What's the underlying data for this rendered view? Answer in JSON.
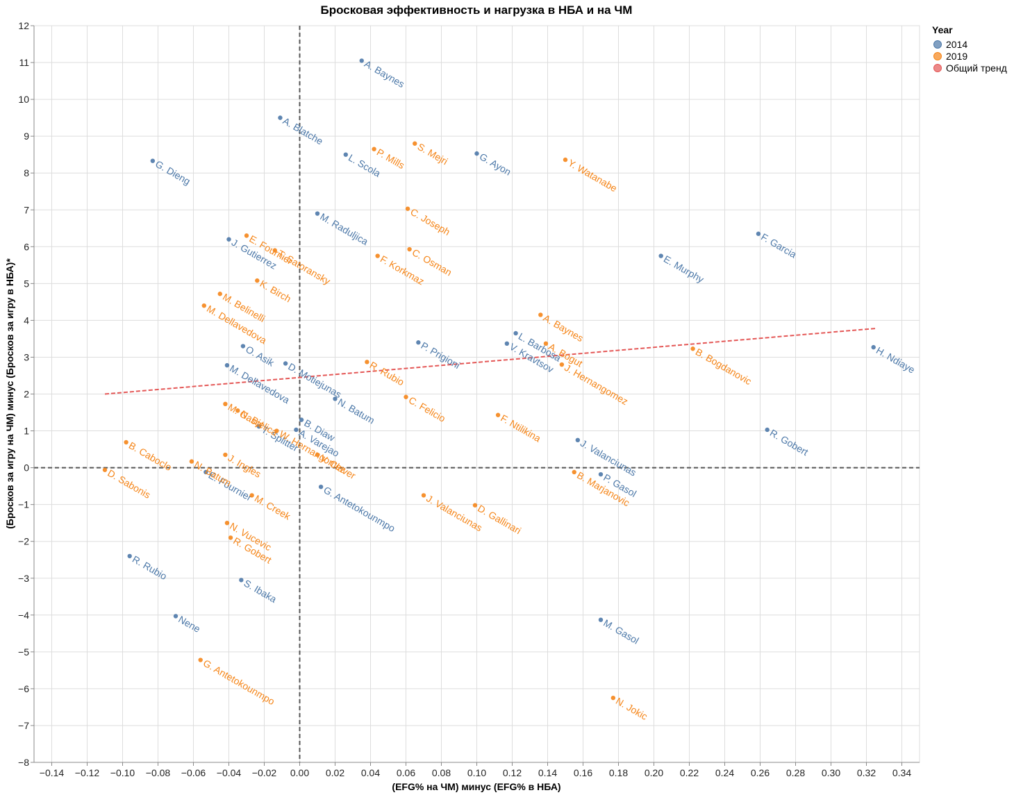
{
  "chart_data": {
    "type": "scatter",
    "title": "Бросковая эффективность и нагрузка в НБА и на ЧМ",
    "xlabel": "(EFG% на ЧМ) минус (EFG% в НБА)",
    "ylabel": "(Бросков за игру на ЧМ) минус (Бросков за игру в НБА)*",
    "xlim": [
      -0.15,
      0.35
    ],
    "ylim": [
      -8,
      12
    ],
    "x_ticks": [
      -0.14,
      -0.12,
      -0.1,
      -0.08,
      -0.06,
      -0.04,
      -0.02,
      0.0,
      0.02,
      0.04,
      0.06,
      0.08,
      0.1,
      0.12,
      0.14,
      0.16,
      0.18,
      0.2,
      0.22,
      0.24,
      0.26,
      0.28,
      0.3,
      0.32,
      0.34
    ],
    "x_tick_labels": [
      "−0.14",
      "−0.12",
      "−0.10",
      "−0.08",
      "−0.06",
      "−0.04",
      "−0.02",
      "0.00",
      "0.02",
      "0.04",
      "0.06",
      "0.08",
      "0.10",
      "0.12",
      "0.14",
      "0.16",
      "0.18",
      "0.20",
      "0.22",
      "0.24",
      "0.26",
      "0.28",
      "0.30",
      "0.32",
      "0.34"
    ],
    "y_ticks": [
      -8,
      -7,
      -6,
      -5,
      -4,
      -3,
      -2,
      -1,
      0,
      1,
      2,
      3,
      4,
      5,
      6,
      7,
      8,
      9,
      10,
      11,
      12
    ],
    "y_tick_labels": [
      "−8",
      "−7",
      "−6",
      "−5",
      "−4",
      "−3",
      "−2",
      "−1",
      "0",
      "1",
      "2",
      "3",
      "4",
      "5",
      "6",
      "7",
      "8",
      "9",
      "10",
      "11",
      "12"
    ],
    "grid": true,
    "legend": {
      "title": "Year",
      "position": "top-right",
      "items": [
        {
          "label": "2014",
          "color": "#4c78a8"
        },
        {
          "label": "2019",
          "color": "#f58518"
        },
        {
          "label": "Общий тренд",
          "color": "#e45756"
        }
      ]
    },
    "reference_lines": {
      "x": 0,
      "y": 0,
      "color": "#555555"
    },
    "trend": {
      "name": "Общий тренд",
      "x": [
        -0.11,
        0.325
      ],
      "y": [
        2.0,
        3.78
      ],
      "color": "#e45756"
    },
    "series": [
      {
        "name": "2014",
        "color": "#4c78a8",
        "points": [
          {
            "label": "A. Baynes",
            "x": 0.035,
            "y": 11.05
          },
          {
            "label": "A. Blatche",
            "x": -0.011,
            "y": 9.5
          },
          {
            "label": "G. Dieng",
            "x": -0.083,
            "y": 8.33
          },
          {
            "label": "L. Scola",
            "x": 0.026,
            "y": 8.5
          },
          {
            "label": "G. Ayon",
            "x": 0.1,
            "y": 8.53
          },
          {
            "label": "M. Raduljica",
            "x": 0.01,
            "y": 6.9
          },
          {
            "label": "J. Gutierrez",
            "x": -0.04,
            "y": 6.2
          },
          {
            "label": "F. Garcia",
            "x": 0.259,
            "y": 6.35
          },
          {
            "label": "E. Murphy",
            "x": 0.204,
            "y": 5.75
          },
          {
            "label": "L. Barbosa",
            "x": 0.122,
            "y": 3.65
          },
          {
            "label": "P. Prigioni",
            "x": 0.067,
            "y": 3.4
          },
          {
            "label": "V. Kravtsov",
            "x": 0.117,
            "y": 3.37
          },
          {
            "label": "O. Asik",
            "x": -0.032,
            "y": 3.3
          },
          {
            "label": "D. Motiejunas",
            "x": -0.008,
            "y": 2.83
          },
          {
            "label": "M. Dellavedova",
            "x": -0.041,
            "y": 2.78
          },
          {
            "label": "H. Ndiaye",
            "x": 0.324,
            "y": 3.27
          },
          {
            "label": "N. Batum",
            "x": 0.02,
            "y": 1.87
          },
          {
            "label": "R. Gobert",
            "x": 0.264,
            "y": 1.03
          },
          {
            "label": "B. Diaw",
            "x": 0.001,
            "y": 1.3
          },
          {
            "label": "A. Varejao",
            "x": -0.002,
            "y": 1.03
          },
          {
            "label": "T. Splitter",
            "x": -0.023,
            "y": 1.12
          },
          {
            "label": "J. Valanciunas",
            "x": 0.157,
            "y": 0.75
          },
          {
            "label": "E. Fournier",
            "x": -0.053,
            "y": -0.12
          },
          {
            "label": "P. Gasol",
            "x": 0.17,
            "y": -0.18
          },
          {
            "label": "G. Antetokounmpo",
            "x": 0.012,
            "y": -0.52
          },
          {
            "label": "R. Rubio",
            "x": -0.096,
            "y": -2.4
          },
          {
            "label": "S. Ibaka",
            "x": -0.033,
            "y": -3.05
          },
          {
            "label": "Nene",
            "x": -0.07,
            "y": -4.03
          },
          {
            "label": "M. Gasol",
            "x": 0.17,
            "y": -4.13
          }
        ]
      },
      {
        "name": "2019",
        "color": "#f58518",
        "points": [
          {
            "label": "P. Mills",
            "x": 0.042,
            "y": 8.65
          },
          {
            "label": "S. Mejri",
            "x": 0.065,
            "y": 8.8
          },
          {
            "label": "Y. Watanabe",
            "x": 0.15,
            "y": 8.36
          },
          {
            "label": "C. Joseph",
            "x": 0.061,
            "y": 7.03
          },
          {
            "label": "E. Fournier",
            "x": -0.03,
            "y": 6.3
          },
          {
            "label": "T. Satoransky",
            "x": -0.014,
            "y": 5.9
          },
          {
            "label": "C. Osman",
            "x": 0.062,
            "y": 5.93
          },
          {
            "label": "F. Korkmaz",
            "x": 0.044,
            "y": 5.75
          },
          {
            "label": "K. Birch",
            "x": -0.024,
            "y": 5.08
          },
          {
            "label": "M. Belinelli",
            "x": -0.045,
            "y": 4.72
          },
          {
            "label": "M. Dellavedova",
            "x": -0.054,
            "y": 4.4
          },
          {
            "label": "A. Baynes",
            "x": 0.136,
            "y": 4.15
          },
          {
            "label": "A. Bogut",
            "x": 0.139,
            "y": 3.37
          },
          {
            "label": "B. Bogdanovic",
            "x": 0.222,
            "y": 3.23
          },
          {
            "label": "J. Hernangomez",
            "x": 0.148,
            "y": 2.8
          },
          {
            "label": "R. Rubio",
            "x": 0.038,
            "y": 2.87
          },
          {
            "label": "C. Felicio",
            "x": 0.06,
            "y": 1.92
          },
          {
            "label": "F. Ntilikina",
            "x": 0.112,
            "y": 1.43
          },
          {
            "label": "M. Gasol",
            "x": -0.042,
            "y": 1.73
          },
          {
            "label": "N. Bjelica",
            "x": -0.035,
            "y": 1.55
          },
          {
            "label": "W. Hernangomez",
            "x": -0.013,
            "y": 1.0
          },
          {
            "label": "V. Claver",
            "x": 0.01,
            "y": 0.35
          },
          {
            "label": "B. Caboclo",
            "x": -0.098,
            "y": 0.69
          },
          {
            "label": "J. Ingles",
            "x": -0.042,
            "y": 0.35
          },
          {
            "label": "N. Batum",
            "x": -0.061,
            "y": 0.17
          },
          {
            "label": "D. Sabonis",
            "x": -0.11,
            "y": -0.06
          },
          {
            "label": "B. Marjanovic",
            "x": 0.155,
            "y": -0.12
          },
          {
            "label": "M. Creek",
            "x": -0.027,
            "y": -0.75
          },
          {
            "label": "J. Valanciunas",
            "x": 0.07,
            "y": -0.75
          },
          {
            "label": "D. Gallinari",
            "x": 0.099,
            "y": -1.02
          },
          {
            "label": "N. Vucevic",
            "x": -0.041,
            "y": -1.5
          },
          {
            "label": "R. Gobert",
            "x": -0.039,
            "y": -1.9
          },
          {
            "label": "G. Antetokounmpo",
            "x": -0.056,
            "y": -5.22
          },
          {
            "label": "N. Jokic",
            "x": 0.177,
            "y": -6.25
          }
        ]
      }
    ]
  }
}
